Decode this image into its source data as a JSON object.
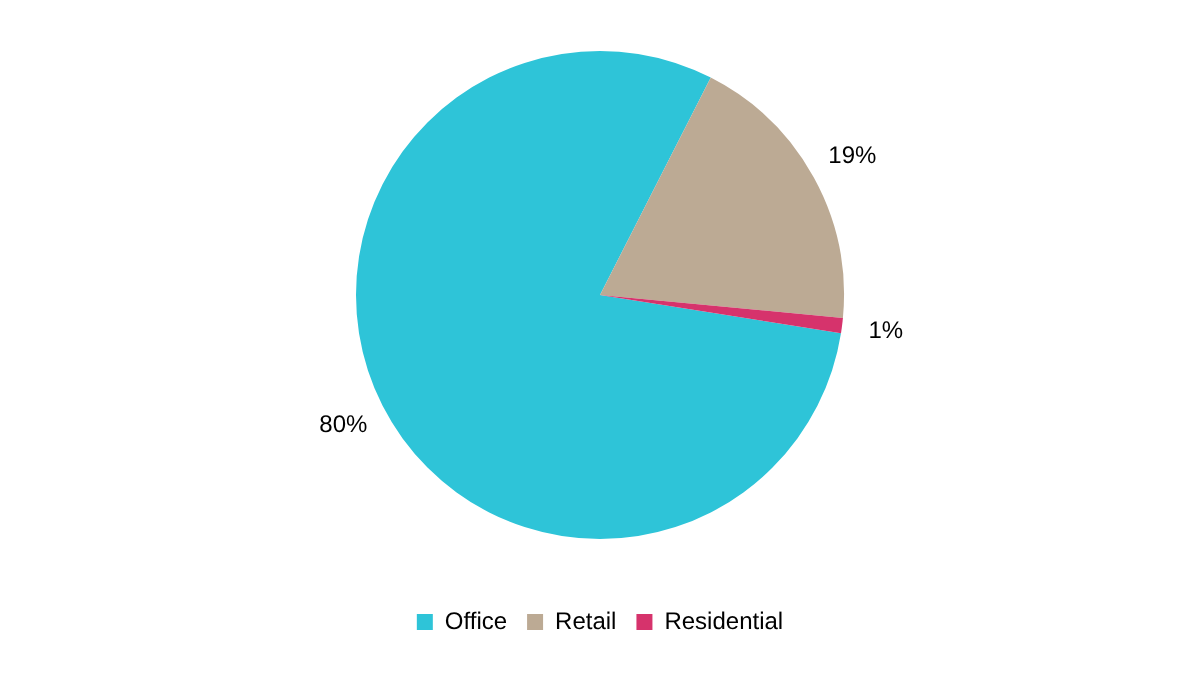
{
  "chart_data": {
    "type": "pie",
    "categories": [
      "Office",
      "Retail",
      "Residential"
    ],
    "values": [
      80,
      19,
      1
    ],
    "colors": [
      "#2ec4d8",
      "#bcaa94",
      "#d6336c"
    ],
    "value_labels": [
      "80%",
      "19%",
      "1%"
    ],
    "legend": "bottom"
  }
}
